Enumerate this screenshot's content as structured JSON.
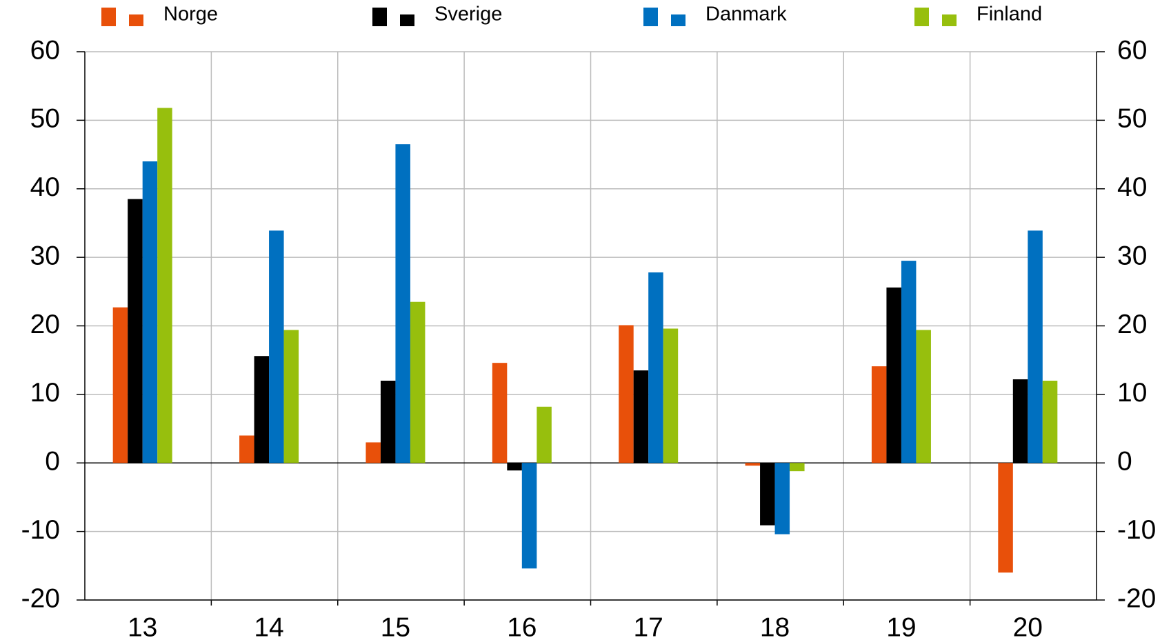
{
  "chart_data": {
    "type": "bar",
    "categories": [
      "13",
      "14",
      "15",
      "16",
      "17",
      "18",
      "19",
      "20"
    ],
    "series": [
      {
        "name": "Norge",
        "color": "#e8500a",
        "values": [
          22.7,
          4,
          3,
          14.6,
          20.1,
          -0.4,
          14.1,
          -16
        ]
      },
      {
        "name": "Sverige",
        "color": "#000000",
        "values": [
          38.5,
          15.6,
          12,
          -1.1,
          13.5,
          -9.1,
          25.6,
          12.2
        ]
      },
      {
        "name": "Danmark",
        "color": "#0070c0",
        "values": [
          44,
          33.9,
          46.5,
          -15.4,
          27.8,
          -10.4,
          29.5,
          33.9
        ]
      },
      {
        "name": "Finland",
        "color": "#97bf0d",
        "values": [
          51.8,
          19.4,
          23.5,
          8.2,
          19.6,
          -1.2,
          19.4,
          12
        ]
      }
    ],
    "ylim": [
      -20,
      60
    ],
    "yticks": [
      -20,
      -10,
      0,
      10,
      20,
      30,
      40,
      50,
      60
    ],
    "y2lim": [
      -20,
      60
    ],
    "y2ticks": [
      -20,
      -10,
      0,
      10,
      20,
      30,
      40,
      50,
      60
    ],
    "grid": true
  }
}
